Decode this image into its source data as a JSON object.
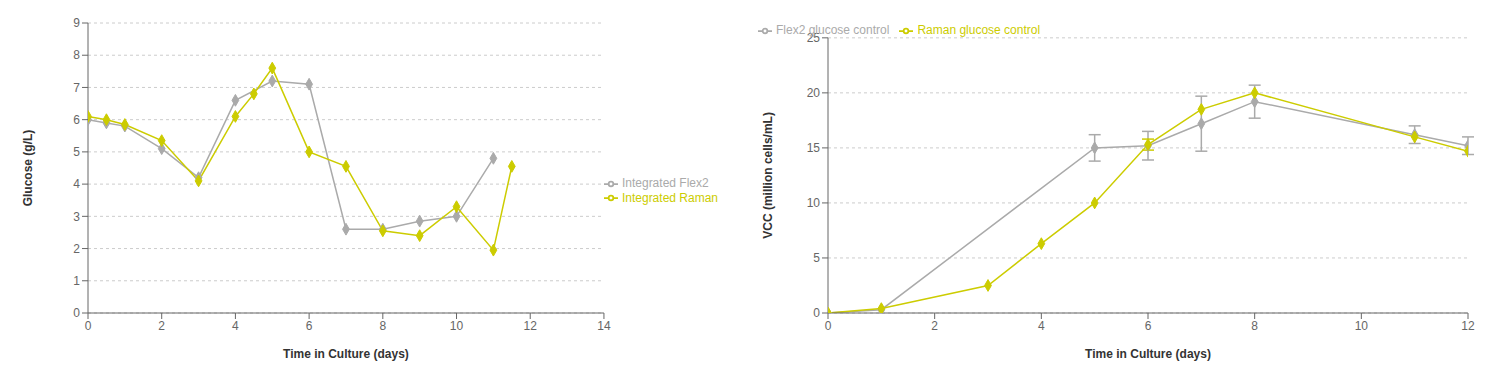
{
  "chart_data": [
    {
      "type": "line",
      "x_label": "Time in Culture (days)",
      "y_label": "Glucose (g/L)",
      "xlim": [
        0,
        14
      ],
      "ylim": [
        0,
        9
      ],
      "xticks": [
        0,
        2,
        4,
        6,
        8,
        10,
        12,
        14
      ],
      "yticks": [
        0,
        1,
        2,
        3,
        4,
        5,
        6,
        7,
        8,
        9
      ],
      "grid": "y",
      "legend": "right",
      "series": [
        {
          "name": "Integrated Flex2",
          "color": "#aaaaaa",
          "marker": "diamond",
          "x": [
            0,
            0.5,
            1,
            2,
            3,
            4,
            5,
            6,
            7,
            8,
            9,
            10,
            11
          ],
          "values": [
            6.0,
            5.9,
            5.8,
            5.1,
            4.2,
            6.6,
            7.2,
            7.1,
            2.6,
            2.6,
            2.85,
            3.0,
            4.8
          ]
        },
        {
          "name": "Integrated Raman",
          "color": "#cccc00",
          "marker": "diamond",
          "x": [
            0,
            0.5,
            1,
            2,
            3,
            4,
            4.5,
            5,
            6,
            7,
            8,
            9,
            10,
            11,
            11.5
          ],
          "values": [
            6.1,
            6.0,
            5.85,
            5.35,
            4.1,
            6.1,
            6.8,
            7.6,
            5.0,
            4.55,
            2.55,
            2.4,
            3.3,
            1.95,
            4.55
          ]
        }
      ]
    },
    {
      "type": "line",
      "x_label": "Time in Culture (days)",
      "y_label": "VCC (million cells/mL)",
      "xlim": [
        0,
        12
      ],
      "ylim": [
        0,
        25
      ],
      "xticks": [
        0,
        2,
        4,
        6,
        8,
        10,
        12
      ],
      "yticks": [
        0,
        5,
        10,
        15,
        20,
        25
      ],
      "grid": "y",
      "legend": "upper left",
      "series": [
        {
          "name": "Flex2 glucose control",
          "color": "#aaaaaa",
          "marker": "diamond",
          "x": [
            0,
            1,
            5,
            6,
            7,
            8,
            11,
            12
          ],
          "values": [
            0.0,
            0.3,
            15.0,
            15.2,
            17.2,
            19.2,
            16.2,
            15.2
          ],
          "yerr": [
            0,
            0,
            1.2,
            1.3,
            2.5,
            1.5,
            0.8,
            0.8
          ]
        },
        {
          "name": "Raman glucose control",
          "color": "#cccc00",
          "marker": "diamond",
          "x": [
            0,
            1,
            3,
            4,
            5,
            6,
            7,
            8,
            11,
            12
          ],
          "values": [
            0,
            0.4,
            2.5,
            6.3,
            10.0,
            15.3,
            18.5,
            20.0,
            16.0,
            14.7
          ],
          "yerr": [
            0,
            0,
            0,
            0,
            0,
            0.5,
            0,
            0,
            0,
            0
          ]
        }
      ]
    }
  ]
}
